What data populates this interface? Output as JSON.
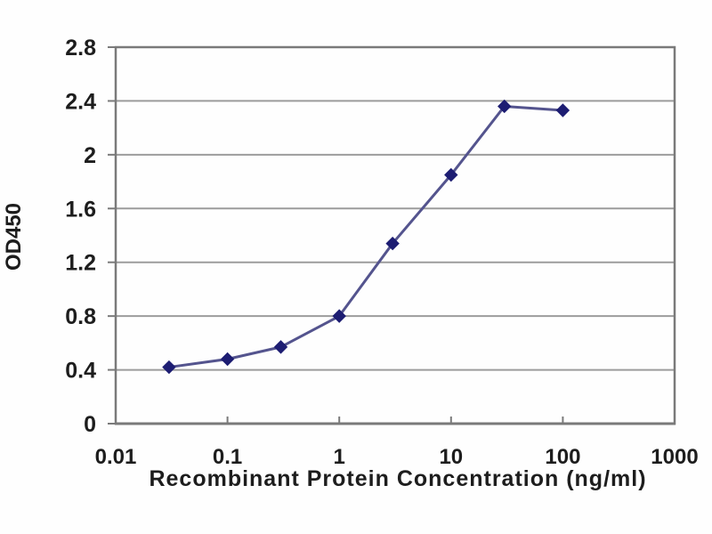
{
  "chart_data": {
    "type": "line",
    "title": "",
    "xlabel": "Recombinant Protein Concentration (ng/ml)",
    "ylabel": "OD450",
    "x_scale": "log",
    "xlim": [
      0.01,
      1000
    ],
    "ylim": [
      0,
      2.8
    ],
    "x_ticks": [
      0.01,
      0.1,
      1,
      10,
      100,
      1000
    ],
    "x_tick_labels": [
      "0.01",
      "0.1",
      "1",
      "10",
      "100",
      "1000"
    ],
    "y_ticks": [
      0,
      0.4,
      0.8,
      1.2,
      1.6,
      2,
      2.4,
      2.8
    ],
    "y_tick_labels": [
      "0",
      "0.4",
      "0.8",
      "1.2",
      "1.6",
      "2",
      "2.4",
      "2.8"
    ],
    "grid": "horizontal",
    "legend": "none",
    "series": [
      {
        "name": "OD450",
        "marker": "diamond",
        "x": [
          0.03,
          0.1,
          0.3,
          1,
          3,
          10,
          30,
          100
        ],
        "y": [
          0.42,
          0.48,
          0.57,
          0.8,
          1.34,
          1.85,
          2.36,
          2.33
        ]
      }
    ],
    "colors": {
      "line": "#54548e",
      "marker": "#1d1d72",
      "grid": "#9c9c9c",
      "axis": "#7a7a7a",
      "text": "#1d1d1d",
      "background": "#fefefe"
    }
  }
}
